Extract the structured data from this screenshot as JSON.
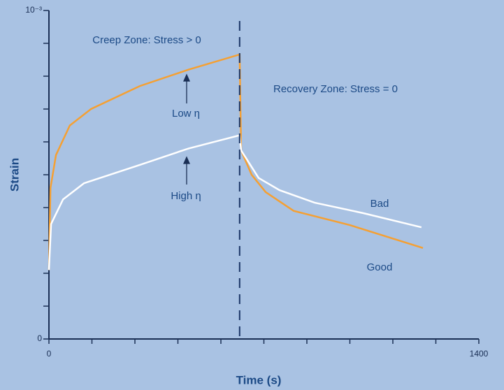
{
  "chart_data": {
    "type": "line",
    "xlabel": "Time (s)",
    "ylabel": "Strain",
    "xlim": [
      0,
      1400
    ],
    "ylim": [
      0,
      1
    ],
    "xticks": [
      0,
      1400
    ],
    "yticks": [
      0,
      {
        "value": 1,
        "label": "10⁻³"
      }
    ],
    "x_minor_ticks": [
      140,
      280,
      420,
      560,
      700,
      840,
      980,
      1120,
      1260
    ],
    "y_minor_ticks": [
      0.1,
      0.2,
      0.3,
      0.4,
      0.5,
      0.6,
      0.7,
      0.8,
      0.9
    ],
    "vlines": [
      621
    ],
    "series": [
      {
        "color": "#f5a033",
        "x": [
          0,
          5,
          23,
          68,
          137,
          296,
          455,
          621,
          626,
          660,
          706,
          797,
          979,
          1218
        ],
        "values": [
          0.21,
          0.46,
          0.56,
          0.65,
          0.7,
          0.77,
          0.82,
          0.866,
          0.574,
          0.5,
          0.447,
          0.39,
          0.347,
          0.277
        ]
      },
      {
        "color": "#ffffff",
        "x": [
          0,
          7,
          46,
          114,
          296,
          455,
          621,
          626,
          683,
          751,
          865,
          1024,
          1213
        ],
        "values": [
          0.21,
          0.35,
          0.425,
          0.474,
          0.53,
          0.58,
          0.62,
          0.574,
          0.49,
          0.453,
          0.415,
          0.383,
          0.34
        ]
      }
    ],
    "annotations": [
      "Creep Zone: Stress > 0",
      "Recovery Zone: Stress = 0",
      "Low η",
      "High η",
      "Bad",
      "Good"
    ]
  }
}
